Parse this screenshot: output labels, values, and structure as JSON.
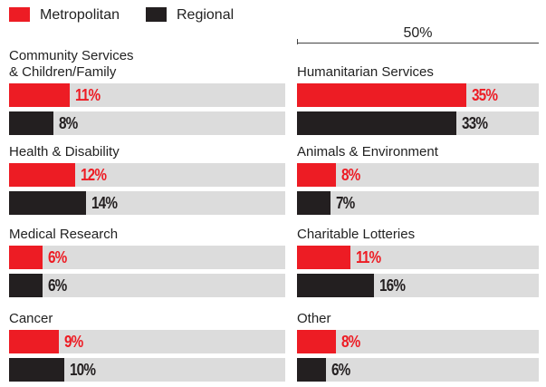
{
  "chart_data": {
    "type": "bar",
    "categories": [
      "Community Services\n& Children/Family",
      "Health & Disability",
      "Medical Research",
      "Cancer",
      "Humanitarian Services",
      "Animals & Environment",
      "Charitable Lotteries",
      "Other"
    ],
    "series": [
      {
        "name": "Metropolitan",
        "color": "#ed1c24",
        "values": [
          11,
          12,
          6,
          9,
          35,
          8,
          11,
          8
        ],
        "value_labels": [
          "11%",
          "12%",
          "6%",
          "9%",
          "35%",
          "8%",
          "11%",
          "8%"
        ]
      },
      {
        "name": "Regional",
        "color": "#231f20",
        "values": [
          8,
          14,
          6,
          10,
          33,
          7,
          16,
          6
        ],
        "value_labels": [
          "8%",
          "14%",
          "6%",
          "10%",
          "33%",
          "7%",
          "16%",
          "6%"
        ]
      }
    ],
    "xlim": [
      0,
      50
    ],
    "xticks": [
      {
        "value": 50,
        "label": "50%"
      }
    ]
  }
}
